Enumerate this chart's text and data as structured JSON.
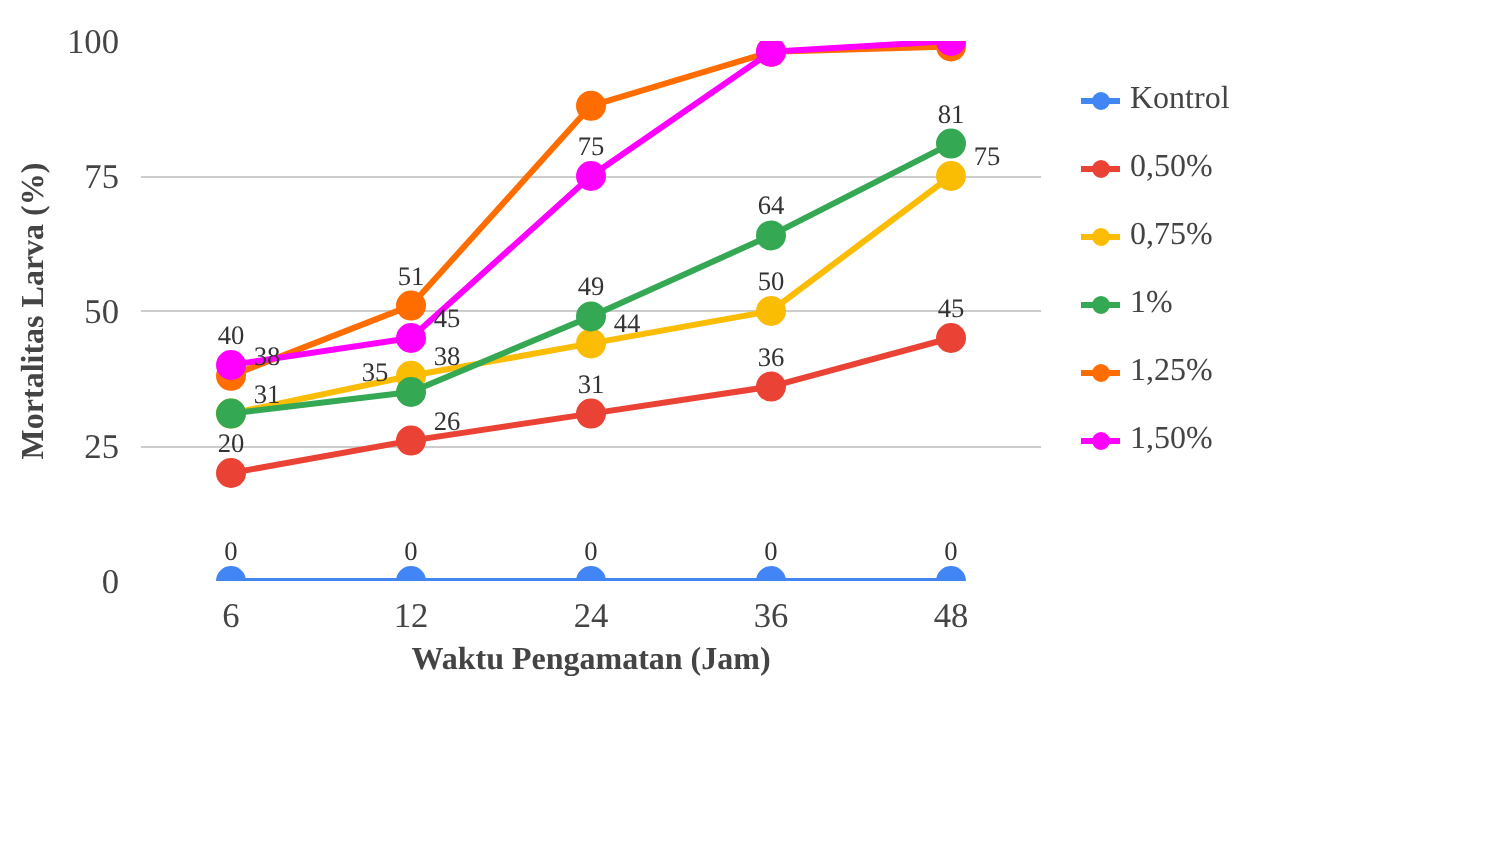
{
  "chart_data": {
    "type": "line",
    "xlabel": "Waktu Pengamatan (Jam)",
    "ylabel": "Mortalitas Larva (%)",
    "categories": [
      "6",
      "12",
      "24",
      "36",
      "48"
    ],
    "ylim": [
      0,
      100
    ],
    "yticks": [
      0,
      25,
      50,
      75,
      100
    ],
    "grid": "y",
    "legend": "right",
    "marker": "circle",
    "line_style": "solid",
    "series": [
      {
        "name": "Kontrol",
        "color": "#4285f4",
        "values": [
          0,
          0,
          0,
          0,
          0
        ],
        "value_labels": [
          "0",
          "0",
          "0",
          "0",
          "0"
        ]
      },
      {
        "name": "0,50%",
        "color": "#ea4335",
        "values": [
          20,
          26,
          31,
          36,
          45
        ],
        "value_labels": [
          "20",
          "26",
          "31",
          "36",
          "45"
        ]
      },
      {
        "name": "0,75%",
        "color": "#fbbc04",
        "values": [
          31,
          38,
          44,
          50,
          75
        ],
        "value_labels": [
          "31",
          "38",
          "44",
          "50",
          "75"
        ]
      },
      {
        "name": "1%",
        "color": "#34a853",
        "values": [
          31,
          35,
          49,
          64,
          81
        ],
        "value_labels": [
          null,
          "35",
          "49",
          "64",
          "81"
        ]
      },
      {
        "name": "1,25%",
        "color": "#ff6d01",
        "values": [
          38,
          51,
          88,
          98,
          99
        ],
        "value_labels": [
          "38",
          "51",
          null,
          null,
          null
        ]
      },
      {
        "name": "1,50%",
        "color": "#ff00ff",
        "values": [
          40,
          45,
          75,
          98,
          100
        ],
        "value_labels": [
          "40",
          "45",
          "75",
          null,
          null
        ]
      }
    ]
  }
}
